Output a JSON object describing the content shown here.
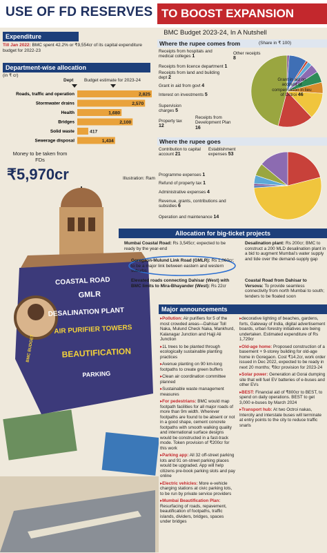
{
  "header": {
    "title_main": "USE OF FD RESERVES",
    "title_accent": "TO BOOST EXPANSION",
    "subtitle": "BMC Budget 2023-24, In A Nutshell"
  },
  "expenditure": {
    "heading": "Expenditure",
    "lead": "Till Jan 2022:",
    "text": "BMC spent 42.2% or ₹9,554cr of its capital expenditure budget for 2022-23"
  },
  "department_allocation": {
    "heading": "Department-wise allocation",
    "unit": "(in ₹ cr)",
    "category_header": "Dept",
    "value_header": "Budget estimate for 2023-24",
    "color": "#e9a23b",
    "categories": [
      "Roads, traffic and operation",
      "Stormwater drains",
      "Health",
      "Bridges",
      "Solid waste",
      "Sewerage disposal"
    ],
    "values": [
      2825,
      2570,
      1680,
      2100,
      417,
      1434
    ],
    "value_labels": [
      "2,825",
      "2,570",
      "1,680",
      "2,100",
      "417",
      "1,434"
    ]
  },
  "fd_money": {
    "label": "Money to be taken from FDs",
    "amount": "₹5,970cr"
  },
  "credit": "Illustration: Ram",
  "rupee_comes_from": {
    "heading": "Where the rupee comes from",
    "note": "(Share in ₹ 100)",
    "items": [
      {
        "label": "Receipts from hospitals and medical colleges",
        "value": 1,
        "color": "#7b4a8c"
      },
      {
        "label": "Other receipts",
        "value": 8,
        "color": "#3f6fb5"
      },
      {
        "label": "Receipts from licence department",
        "value": 1,
        "color": "#c7462f"
      },
      {
        "label": "Receipts from land and building dept",
        "value": 2,
        "color": "#5da9d6"
      },
      {
        "label": "Grant in aid from govt",
        "value": 4,
        "color": "#8c6bb1"
      },
      {
        "label": "Interest on investments",
        "value": 5,
        "color": "#2e8b57"
      },
      {
        "label": "Supervision charges",
        "value": 5,
        "color": "#d98c2b"
      },
      {
        "label": "Property tax",
        "value": 12,
        "color": "#f0c53d"
      },
      {
        "label": "Receipts from Development Plan",
        "value": 16,
        "color": "#c8413a"
      },
      {
        "label": "Grant in aid on account of compensation in lieu of Octroi",
        "value": 46,
        "color": "#9aa640"
      }
    ]
  },
  "rupee_goes": {
    "heading": "Where the rupee goes",
    "items": [
      {
        "label": "Contribution to capital account",
        "value": 21,
        "color": "#c8413a"
      },
      {
        "label": "Establishment expenses",
        "value": 53,
        "color": "#f0c53d"
      },
      {
        "label": "Programme expenses",
        "value": 1,
        "color": "#3f6fb5"
      },
      {
        "label": "Refund of property tax",
        "value": 1,
        "color": "#7b4a8c"
      },
      {
        "label": "Administrative expenses",
        "value": 4,
        "color": "#5da9d6"
      },
      {
        "label": "Revenue, grants, contributions and subsidies",
        "value": 6,
        "color": "#9aa640"
      },
      {
        "label": "Operation and maintenance",
        "value": 14,
        "color": "#8c6bb1"
      }
    ]
  },
  "big_ticket": {
    "heading": "Allocation for big-ticket projects",
    "projects": [
      {
        "name": "Mumbai Coastal Road:",
        "text": "Rs 3,545cr; expected to be ready by the year-end"
      },
      {
        "name": "Goregaon-Mulund Link Road (GMLR):",
        "text": "Rs 1,060cr; to be a major link between eastern and western suburbs"
      },
      {
        "name": "Elevated roads connecting Dahisar (West) with BMC limits to Mira-Bhayander (West):",
        "text": "Rs 22cr"
      },
      {
        "name": "Desalination plant:",
        "text": "Rs 200cr; BMC to construct a 200 MLD desalination plant in a bid to augment Mumbai's water supply and tide over the demand-supply gap"
      },
      {
        "name": "Coastal Road from Dahisar to Versova:",
        "text": "To provide seamless connectivity from north Mumbai to south; tenders to be floated soon"
      }
    ]
  },
  "announcements": {
    "heading": "Major announcements",
    "left": [
      {
        "lead": "Pollution:",
        "text": "Air purifiers for 5 of the most crowded areas—Dahisar Toll Naka, Mulund Check Naka, Mankhurd, Kalanagar Junction and Hajji Ali Junction"
      },
      {
        "text": "1L trees to be planted through ecologically sustainable planting practices"
      },
      {
        "text": "Avenue planting on 90 km-long footpaths to create green buffers"
      },
      {
        "text": "Clean air coordination committee planned"
      },
      {
        "text": "Sustainable waste management measures"
      },
      {
        "lead": "For pedestrians:",
        "text": "BMC would map footpath facilities for all major roads of more than 9m width. Wherever footpaths are found to be absent or not in a good shape, cement concrete footpaths with smooth walking quality and international surface designs would be constructed in a fast-track mode. Token provision of ₹200cr for this work"
      },
      {
        "lead": "Parking app:",
        "text": "All 32 off-street parking lots and 91 on-street parking places would be upgraded. App will help citizens pre-book parking slots and pay online"
      },
      {
        "lead": "Electric vehicles:",
        "text": "More e-vehicle charging stations at civic parking lots, to be run by private service providers"
      },
      {
        "lead": "Mumbai Beautification Plan:",
        "text": "Resurfacing of roads, repavement, beautification of footpaths, traffic islands, dividers, bridges, spaces under bridges"
      }
    ],
    "right": [
      {
        "text": "decorative lighting of beaches, gardens, forts, Gateway of India, digital advertisement boards, urban forestry initiatives are being undertaken. Estimated expenditure of Rs 1,729cr"
      },
      {
        "lead": "Old-age home:",
        "text": "Proposed construction of a basement + 9-storey building for old-age home in Goregaon. Cost ₹14.2cr, work order issued in Dec 2022, expected to be ready in next 20 months; ₹8cr provision for 2023-24"
      },
      {
        "lead": "Solar power:",
        "text": "Generation at Gorai dumping site that will fuel EV batteries of e-buses and other EVs"
      },
      {
        "lead": "BEST:",
        "text": "Financial aid of ₹800cr to BEST, to spend on daily operations. BEST to get 3,000 e-buses by March 2024"
      },
      {
        "lead": "Transport hub:",
        "text": "At two Octroi nakas, Intercity and interstate buses will terminate at entry points to the city to reduce traffic snarls"
      }
    ]
  },
  "illustration": {
    "signs": [
      "BMC BUDGET",
      "COASTAL ROAD",
      "GMLR",
      "DESALINATION PLANT",
      "AIR PURIFIER TOWERS",
      "BEAUTIFICATION",
      "PARKING"
    ]
  }
}
